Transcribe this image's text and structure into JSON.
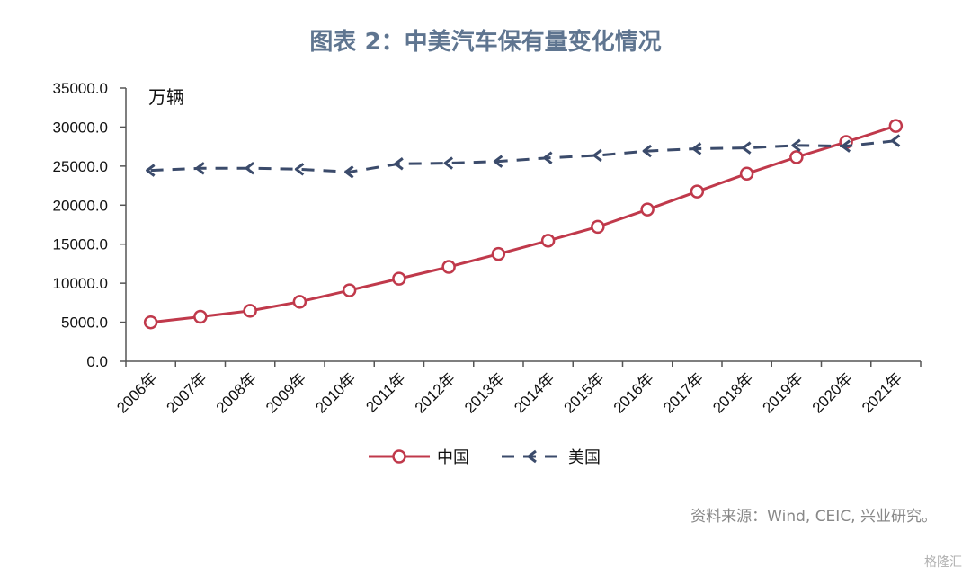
{
  "title": "图表 2：中美汽车保有量变化情况",
  "source": "资料来源：Wind, CEIC, 兴业研究。",
  "watermark": "格隆汇",
  "colors": {
    "china": "#c0394b",
    "usa": "#3b4b6b",
    "title": "#5f7590"
  },
  "chart_data": {
    "type": "line",
    "title": "图表 2：中美汽车保有量变化情况",
    "unit_label": "万辆",
    "categories": [
      "2006年",
      "2007年",
      "2008年",
      "2009年",
      "2010年",
      "2011年",
      "2012年",
      "2013年",
      "2014年",
      "2015年",
      "2016年",
      "2017年",
      "2018年",
      "2019年",
      "2020年",
      "2021年"
    ],
    "ylim": [
      0,
      35000
    ],
    "yticks": [
      "0.0",
      "5000.0",
      "10000.0",
      "15000.0",
      "20000.0",
      "25000.0",
      "30000.0",
      "35000.0"
    ],
    "grid": false,
    "legend_position": "bottom",
    "series": [
      {
        "name": "中国",
        "style": "solid",
        "marker": "circle",
        "values": [
          4985,
          5697,
          6467,
          7619,
          9086,
          10578,
          12089,
          13741,
          15447,
          17228,
          19440,
          21743,
          24028,
          26150,
          28087,
          30151
        ]
      },
      {
        "name": "美国",
        "style": "dashed",
        "marker": "arrow",
        "values": [
          24450,
          24720,
          24730,
          24600,
          24250,
          25300,
          25380,
          25600,
          26050,
          26370,
          26930,
          27230,
          27330,
          27650,
          27560,
          28250
        ]
      }
    ]
  }
}
